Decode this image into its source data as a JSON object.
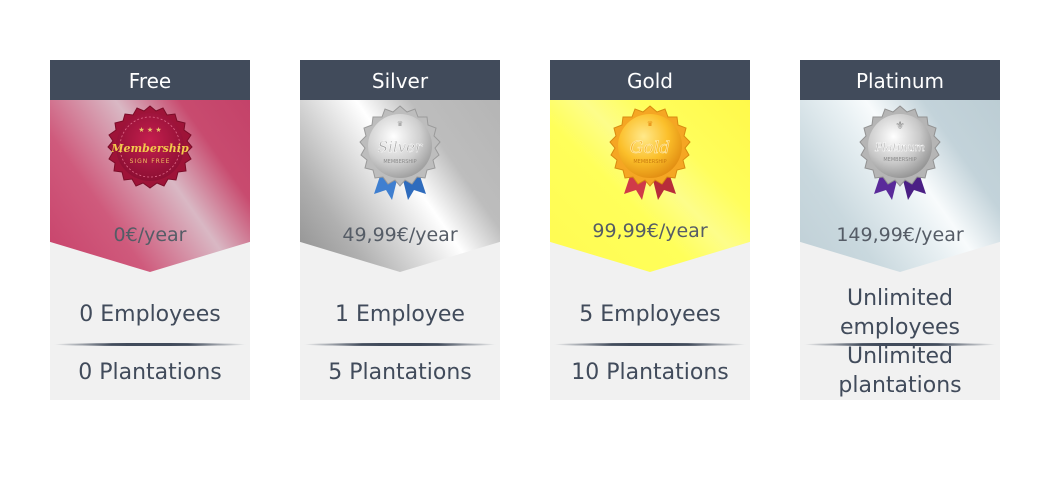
{
  "plans": [
    {
      "name": "Free",
      "badge": {
        "title": "Membership",
        "subtitle": "SIGN FREE"
      },
      "price": "0€/year",
      "feature1": "0 Employees",
      "feature2": "0 Plantations",
      "colors": {
        "accent": "#c84469",
        "ribbon": "none"
      },
      "icon": "membership-seal-icon"
    },
    {
      "name": "Silver",
      "badge": {
        "title": "Silver",
        "subtitle": "MEMBERSHIP"
      },
      "price": "49,99€/year",
      "feature1": "1 Employee",
      "feature2": "5 Plantations",
      "colors": {
        "accent": "#c0c0c0",
        "ribbon": "#3f7fd0"
      },
      "icon": "silver-medal-icon"
    },
    {
      "name": "Gold",
      "badge": {
        "title": "Gold",
        "subtitle": "MEMBERSHIP"
      },
      "price": "99,99€/year",
      "feature1": "5 Employees",
      "feature2": "10 Plantations",
      "colors": {
        "accent": "#ffd53d",
        "ribbon": "#d03a48"
      },
      "icon": "gold-medal-icon"
    },
    {
      "name": "Platinum",
      "badge": {
        "title": "Platinum",
        "subtitle": "MEMBERSHIP"
      },
      "price": "149,99€/year",
      "feature1": "Unlimited employees",
      "feature2": "Unlimited plantations",
      "colors": {
        "accent": "#d8e4e9",
        "ribbon": "#5a2a9a"
      },
      "icon": "platinum-medal-icon"
    }
  ],
  "theme": {
    "header_bg": "#414b5b",
    "body_bg": "#f1f1f1",
    "text": "#414b5b"
  }
}
